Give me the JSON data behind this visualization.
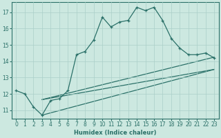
{
  "xlabel": "Humidex (Indice chaleur)",
  "ylabel": "",
  "bg_color": "#cce8e0",
  "grid_color": "#aacfc8",
  "line_color": "#2a7068",
  "xlim": [
    -0.5,
    23.5
  ],
  "ylim": [
    10.5,
    17.6
  ],
  "yticks": [
    11,
    12,
    13,
    14,
    15,
    16,
    17
  ],
  "xticks": [
    0,
    1,
    2,
    3,
    4,
    5,
    6,
    7,
    8,
    9,
    10,
    11,
    12,
    13,
    14,
    15,
    16,
    17,
    18,
    19,
    20,
    21,
    22,
    23
  ],
  "series1_x": [
    0,
    1,
    2,
    3,
    4,
    5,
    6,
    7,
    8,
    9,
    10,
    11,
    12,
    13,
    14,
    15,
    16,
    17,
    18,
    19,
    20,
    21,
    22,
    23
  ],
  "series1_y": [
    12.2,
    12.0,
    11.2,
    10.7,
    11.6,
    11.7,
    12.2,
    14.4,
    14.6,
    15.3,
    16.7,
    16.1,
    16.4,
    16.5,
    17.3,
    17.1,
    17.3,
    16.5,
    15.4,
    14.8,
    14.4,
    14.4,
    14.5,
    14.2
  ],
  "series2_x": [
    3,
    23
  ],
  "series2_y": [
    11.65,
    13.5
  ],
  "series3_x": [
    3,
    23
  ],
  "series3_y": [
    11.65,
    14.25
  ],
  "series4_x": [
    3,
    23
  ],
  "series4_y": [
    10.7,
    13.5
  ],
  "xlabel_fontsize": 6.0,
  "tick_fontsize": 5.5
}
